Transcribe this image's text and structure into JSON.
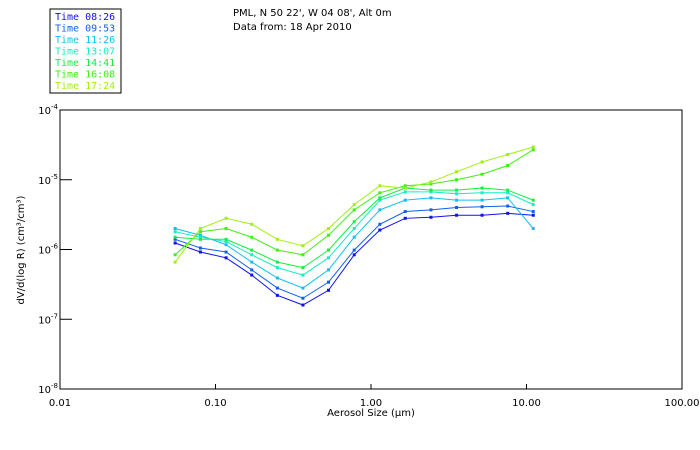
{
  "chart_data": {
    "type": "line",
    "title_lines": [
      "PML, N 50 22', W 04 08', Alt 0m",
      "Data from: 18 Apr 2010"
    ],
    "xlabel": "Aerosol Size (µm)",
    "ylabel": "dV/d(log R) (cm³/cm³)",
    "xscale": "log",
    "yscale": "log",
    "xlim": [
      0.01,
      100
    ],
    "ylim": [
      1e-08,
      0.0001
    ],
    "xticks": [
      {
        "value": 0.01,
        "label": "0.01"
      },
      {
        "value": 0.1,
        "label": "0.10"
      },
      {
        "value": 1,
        "label": "1.00"
      },
      {
        "value": 10,
        "label": "10.00"
      },
      {
        "value": 100,
        "label": "100.00"
      }
    ],
    "yticks": [
      {
        "value": 0.0001,
        "base": "10",
        "exp": "-4"
      },
      {
        "value": 1e-05,
        "base": "10",
        "exp": "-5"
      },
      {
        "value": 1e-06,
        "base": "10",
        "exp": "-6"
      },
      {
        "value": 1e-07,
        "base": "10",
        "exp": "-7"
      },
      {
        "value": 1e-08,
        "base": "10",
        "exp": "-8"
      }
    ],
    "legend_position": "top-left",
    "x": [
      0.055,
      0.08,
      0.117,
      0.171,
      0.25,
      0.365,
      0.533,
      0.78,
      1.14,
      1.66,
      2.43,
      3.55,
      5.18,
      7.57,
      11.05
    ],
    "series": [
      {
        "name": "Time 08:26",
        "color": "#1010f0",
        "values": [
          1.24e-06,
          9.2e-07,
          7.6e-07,
          4.3e-07,
          2.2e-07,
          1.6e-07,
          2.6e-07,
          8.4e-07,
          1.9e-06,
          2.8e-06,
          2.9e-06,
          3.1e-06,
          3.1e-06,
          3.3e-06,
          3.1e-06
        ]
      },
      {
        "name": "Time 09:53",
        "color": "#1060f0",
        "values": [
          1.4e-06,
          1.05e-06,
          9.2e-07,
          5.1e-07,
          2.8e-07,
          2e-07,
          3.4e-07,
          9.8e-07,
          2.3e-06,
          3.5e-06,
          3.7e-06,
          4e-06,
          4.1e-06,
          4.2e-06,
          3.5e-06
        ]
      },
      {
        "name": "Time 11:26",
        "color": "#10c0f0",
        "values": [
          2e-06,
          1.6e-06,
          1.17e-06,
          6.6e-07,
          3.9e-07,
          2.8e-07,
          5.1e-07,
          1.5e-06,
          3.7e-06,
          5.1e-06,
          5.5e-06,
          5.1e-06,
          5.1e-06,
          5.5e-06,
          2e-06
        ]
      },
      {
        "name": "Time 13:07",
        "color": "#10f0c0",
        "values": [
          1.8e-06,
          1.5e-06,
          1.3e-06,
          8.4e-07,
          5.5e-07,
          4.3e-07,
          7.6e-07,
          2e-06,
          5.1e-06,
          6.7e-06,
          6.7e-06,
          6.3e-06,
          6.5e-06,
          6.5e-06,
          4.4e-06
        ]
      },
      {
        "name": "Time 14:41",
        "color": "#10f040",
        "values": [
          1.5e-06,
          1.4e-06,
          1.4e-06,
          9.8e-07,
          6.6e-07,
          5.5e-07,
          9.8e-07,
          2.5e-06,
          5.5e-06,
          7.6e-06,
          7.1e-06,
          7.1e-06,
          7.6e-06,
          7.1e-06,
          5.1e-06
        ]
      },
      {
        "name": "Time 16:08",
        "color": "#40f010",
        "values": [
          8.4e-07,
          1.8e-06,
          2e-06,
          1.5e-06,
          9.8e-07,
          8.4e-07,
          1.6e-06,
          3.7e-06,
          6.5e-06,
          8.2e-06,
          8.7e-06,
          1e-05,
          1.2e-05,
          1.6e-05,
          2.7e-05
        ]
      },
      {
        "name": "Time 17:24",
        "color": "#a0f010",
        "values": [
          6.6e-07,
          2e-06,
          2.8e-06,
          2.3e-06,
          1.4e-06,
          1.13e-06,
          2e-06,
          4.4e-06,
          8.2e-06,
          7.6e-06,
          9.3e-06,
          1.3e-05,
          1.8e-05,
          2.3e-05,
          2.95e-05
        ]
      }
    ]
  }
}
